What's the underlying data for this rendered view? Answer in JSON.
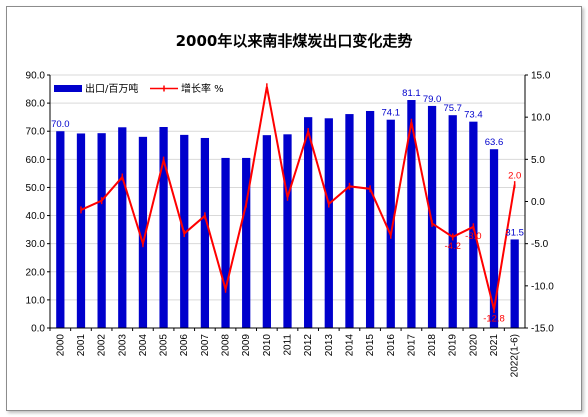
{
  "chart_data": {
    "type": "bar",
    "title": "2000年以来南非煤炭出口变化走势",
    "categories": [
      "2000",
      "2001",
      "2002",
      "2003",
      "2004",
      "2005",
      "2006",
      "2007",
      "2008",
      "2009",
      "2010",
      "2011",
      "2012",
      "2013",
      "2014",
      "2015",
      "2016",
      "2017",
      "2018",
      "2019",
      "2020",
      "2021",
      "2022(1-6)"
    ],
    "series": [
      {
        "name": "出口/百万吨",
        "type": "bar",
        "axis": "left",
        "color": "#0000cc",
        "values": [
          70.0,
          69.2,
          69.3,
          71.4,
          68.0,
          71.5,
          68.7,
          67.6,
          60.5,
          60.5,
          68.6,
          68.9,
          75.0,
          74.6,
          76.1,
          77.2,
          74.1,
          81.1,
          79.0,
          75.7,
          73.4,
          63.6,
          31.5
        ]
      },
      {
        "name": "增长率 %",
        "type": "line",
        "axis": "right",
        "color": "#ff0000",
        "values": [
          null,
          -1.0,
          0.1,
          2.9,
          -5.0,
          4.9,
          -3.8,
          -1.7,
          -10.4,
          -0.3,
          13.6,
          0.5,
          8.3,
          -0.3,
          1.8,
          1.5,
          -4.0,
          9.4,
          -2.6,
          -4.2,
          -3.0,
          -12.8,
          2.0
        ]
      }
    ],
    "ylim_left": [
      0,
      90
    ],
    "yticks_left": [
      "0.0",
      "10.0",
      "20.0",
      "30.0",
      "40.0",
      "50.0",
      "60.0",
      "70.0",
      "80.0",
      "90.0"
    ],
    "ylim_right": [
      -15,
      15
    ],
    "yticks_right": [
      "-15.0",
      "-10.0",
      "-5.0",
      "0.0",
      "5.0",
      "10.0",
      "15.0"
    ],
    "bar_data_labels": {
      "0": "70.0",
      "16": "74.1",
      "17": "81.1",
      "18": "79.0",
      "19": "75.7",
      "20": "73.4",
      "21": "63.6",
      "22": "31.5"
    },
    "line_data_labels": {
      "19": "-4.2",
      "20": "-3.0",
      "21": "-12.8",
      "22": "2.0"
    },
    "legend_position": "top-left",
    "grid": true
  }
}
